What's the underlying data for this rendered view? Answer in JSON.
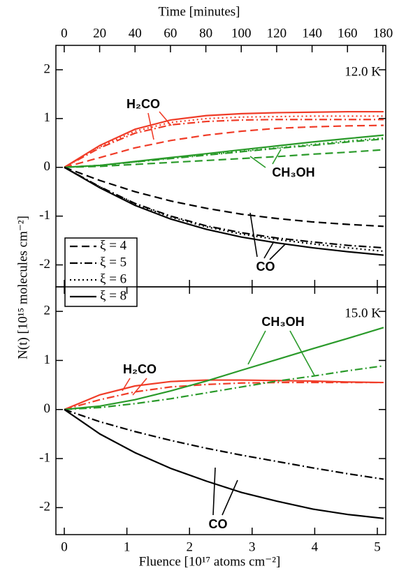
{
  "chart_data": [
    {
      "type": "line",
      "x2label": "Time [minutes]",
      "x2lim": [
        -4.7,
        181.6
      ],
      "x2ticks": [
        0,
        20,
        40,
        60,
        80,
        100,
        120,
        140,
        160,
        180
      ],
      "ylabel": "N(t) [10¹⁵ molecules cm⁻²]",
      "panel_label": "12.0 K",
      "x": [
        0,
        0.57,
        1.13,
        1.7,
        2.27,
        2.83,
        3.4,
        3.97,
        4.53,
        5.1
      ],
      "xlim": [
        -0.134,
        5.134
      ],
      "xticks": [
        0,
        1,
        2,
        3,
        4,
        5
      ],
      "ylim": [
        -2.45,
        2.5
      ],
      "yticks": [
        -2,
        -1,
        0,
        1,
        2
      ],
      "legend": [
        {
          "label": "ξ = 4",
          "dash": "dashed"
        },
        {
          "label": "ξ = 5",
          "dash": "dashdot"
        },
        {
          "label": "ξ = 6",
          "dash": "dotted"
        },
        {
          "label": "ξ = 8",
          "dash": "solid"
        }
      ],
      "series": [
        {
          "color": "#f03c28",
          "dash": "solid",
          "values": [
            0,
            0.45,
            0.78,
            0.97,
            1.06,
            1.1,
            1.12,
            1.13,
            1.14,
            1.14
          ]
        },
        {
          "color": "#f03c28",
          "dash": "dotted",
          "values": [
            0,
            0.42,
            0.74,
            0.92,
            1.0,
            1.03,
            1.04,
            1.05,
            1.05,
            1.05
          ]
        },
        {
          "color": "#f03c28",
          "dash": "dashdot",
          "values": [
            0,
            0.4,
            0.7,
            0.87,
            0.94,
            0.97,
            0.98,
            0.98,
            0.98,
            0.98
          ]
        },
        {
          "color": "#f03c28",
          "dash": "dashed",
          "values": [
            0,
            0.2,
            0.4,
            0.55,
            0.66,
            0.74,
            0.8,
            0.83,
            0.85,
            0.86
          ]
        },
        {
          "color": "#2a9a2a",
          "dash": "solid",
          "values": [
            0,
            0.04,
            0.12,
            0.2,
            0.28,
            0.36,
            0.44,
            0.52,
            0.59,
            0.66
          ]
        },
        {
          "color": "#2a9a2a",
          "dash": "dotted",
          "values": [
            0,
            0.04,
            0.11,
            0.19,
            0.26,
            0.33,
            0.4,
            0.47,
            0.54,
            0.6
          ]
        },
        {
          "color": "#2a9a2a",
          "dash": "dashdot",
          "values": [
            0,
            0.04,
            0.11,
            0.18,
            0.25,
            0.32,
            0.39,
            0.45,
            0.52,
            0.58
          ]
        },
        {
          "color": "#2a9a2a",
          "dash": "dashed",
          "values": [
            0,
            0.02,
            0.06,
            0.1,
            0.14,
            0.18,
            0.22,
            0.27,
            0.31,
            0.36
          ]
        },
        {
          "color": "#000000",
          "dash": "solid",
          "values": [
            0,
            -0.42,
            -0.78,
            -1.06,
            -1.27,
            -1.43,
            -1.55,
            -1.65,
            -1.73,
            -1.8
          ]
        },
        {
          "color": "#000000",
          "dash": "dotted",
          "values": [
            0,
            -0.4,
            -0.75,
            -1.02,
            -1.22,
            -1.37,
            -1.48,
            -1.57,
            -1.65,
            -1.72
          ]
        },
        {
          "color": "#000000",
          "dash": "dashdot",
          "values": [
            0,
            -0.4,
            -0.74,
            -1.0,
            -1.2,
            -1.34,
            -1.45,
            -1.53,
            -1.6,
            -1.65
          ]
        },
        {
          "color": "#000000",
          "dash": "dashed",
          "values": [
            0,
            -0.27,
            -0.5,
            -0.69,
            -0.84,
            -0.96,
            -1.05,
            -1.12,
            -1.17,
            -1.21
          ]
        }
      ],
      "annotations": [
        {
          "text": "H₂CO",
          "color": "#f03c28"
        },
        {
          "text": "CH₃OH",
          "color": "#2a9a2a"
        },
        {
          "text": "CO",
          "color": "#000000"
        }
      ]
    },
    {
      "type": "line",
      "xlabel": "Fluence [10¹⁷ atoms cm⁻²]",
      "panel_label": "15.0 K",
      "x": [
        0,
        0.57,
        1.13,
        1.7,
        2.27,
        2.83,
        3.4,
        3.97,
        4.53,
        5.1
      ],
      "xlim": [
        -0.134,
        5.134
      ],
      "xticks": [
        0,
        1,
        2,
        3,
        4,
        5
      ],
      "ylim": [
        -2.55,
        2.5
      ],
      "yticks": [
        -2,
        -1,
        0,
        1,
        2
      ],
      "series": [
        {
          "color": "#f03c28",
          "dash": "solid",
          "values": [
            0,
            0.3,
            0.48,
            0.57,
            0.6,
            0.6,
            0.59,
            0.58,
            0.56,
            0.55
          ]
        },
        {
          "color": "#f03c28",
          "dash": "dashdot",
          "values": [
            0,
            0.2,
            0.36,
            0.46,
            0.51,
            0.54,
            0.55,
            0.55,
            0.55,
            0.55
          ]
        },
        {
          "color": "#2a9a2a",
          "dash": "solid",
          "values": [
            0,
            0.07,
            0.2,
            0.38,
            0.58,
            0.8,
            1.02,
            1.24,
            1.45,
            1.67
          ]
        },
        {
          "color": "#2a9a2a",
          "dash": "dashdot",
          "values": [
            0,
            0.04,
            0.12,
            0.22,
            0.34,
            0.46,
            0.58,
            0.68,
            0.79,
            0.89
          ]
        },
        {
          "color": "#000000",
          "dash": "solid",
          "values": [
            0,
            -0.5,
            -0.88,
            -1.2,
            -1.46,
            -1.69,
            -1.87,
            -2.03,
            -2.14,
            -2.22
          ]
        },
        {
          "color": "#000000",
          "dash": "dashdot",
          "values": [
            0,
            -0.25,
            -0.45,
            -0.63,
            -0.79,
            -0.93,
            -1.06,
            -1.19,
            -1.31,
            -1.42
          ]
        }
      ],
      "annotations": [
        {
          "text": "CH₃OH",
          "color": "#2a9a2a"
        },
        {
          "text": "H₂CO",
          "color": "#f03c28"
        },
        {
          "text": "CO",
          "color": "#000000"
        }
      ]
    }
  ]
}
